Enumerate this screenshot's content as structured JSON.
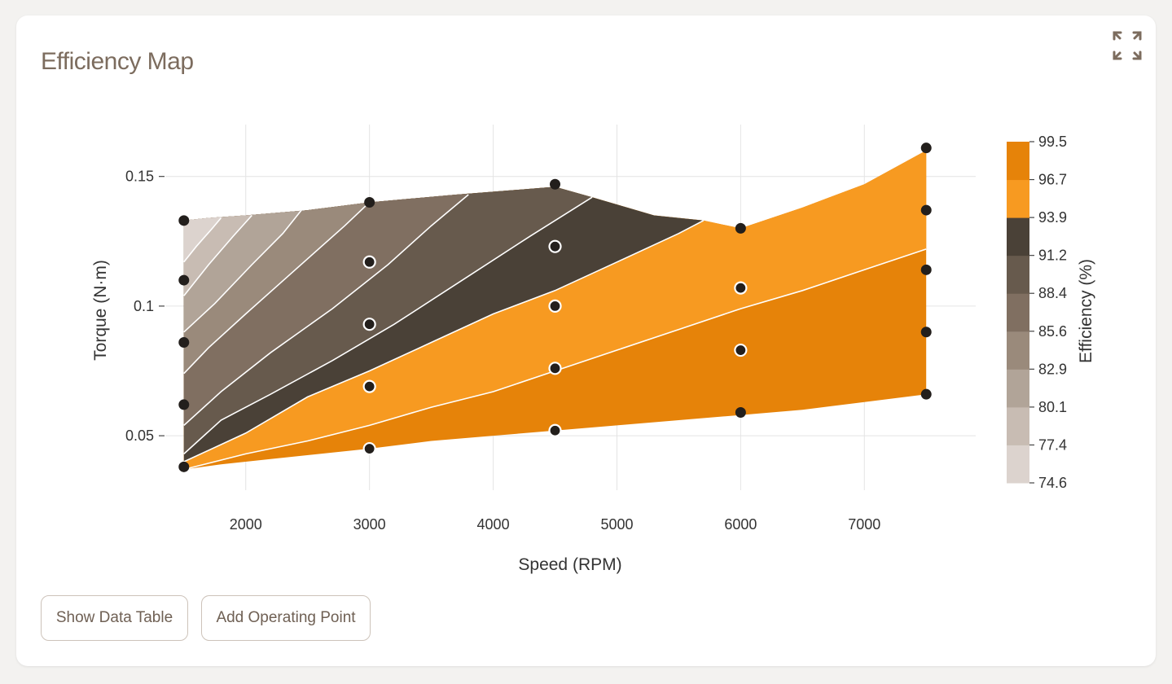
{
  "title": "Efficiency Map",
  "icons": {
    "expand": "expand-icon"
  },
  "buttons": {
    "show_table": "Show Data Table",
    "add_point": "Add Operating Point"
  },
  "chart_data": {
    "type": "contour",
    "xlabel": "Speed (RPM)",
    "ylabel": "Torque (N·m)",
    "xlim": [
      1350,
      7900
    ],
    "ylim": [
      0.029,
      0.17
    ],
    "xticks": [
      2000,
      3000,
      4000,
      5000,
      6000,
      7000
    ],
    "yticks": [
      0.05,
      0.1,
      0.15
    ],
    "ytick_labels": [
      "0.05",
      "0.1",
      "0.15"
    ],
    "grid": true,
    "colorbar": {
      "label": "Efficiency (%)",
      "tick_labels": [
        "74.6",
        "77.4",
        "80.1",
        "82.9",
        "85.6",
        "88.4",
        "91.2",
        "93.9",
        "96.7",
        "99.5"
      ],
      "range": [
        74.6,
        99.5
      ],
      "band_colors": [
        "#dcd3ce",
        "#c8bcb3",
        "#b1a498",
        "#9a8a7b",
        "#806f61",
        "#675a4d",
        "#4a4137",
        "#f79a21",
        "#e68309"
      ]
    },
    "boundary": {
      "top": [
        [
          1500,
          0.133
        ],
        [
          1700,
          0.134
        ],
        [
          2000,
          0.135
        ],
        [
          2500,
          0.137
        ],
        [
          3000,
          0.14
        ],
        [
          3700,
          0.143
        ],
        [
          4500,
          0.146
        ],
        [
          4800,
          0.142
        ],
        [
          5300,
          0.135
        ],
        [
          5700,
          0.133
        ],
        [
          6000,
          0.13
        ],
        [
          6500,
          0.138
        ],
        [
          7000,
          0.147
        ],
        [
          7500,
          0.16
        ]
      ],
      "bottom": [
        [
          1500,
          0.037
        ],
        [
          1800,
          0.039
        ],
        [
          2200,
          0.041
        ],
        [
          2600,
          0.043
        ],
        [
          3000,
          0.045
        ],
        [
          3500,
          0.048
        ],
        [
          4000,
          0.05
        ],
        [
          4500,
          0.052
        ],
        [
          5000,
          0.054
        ],
        [
          5500,
          0.056
        ],
        [
          6000,
          0.058
        ],
        [
          6500,
          0.06
        ],
        [
          7000,
          0.063
        ],
        [
          7500,
          0.066
        ]
      ]
    },
    "contours": [
      {
        "level": 77.4,
        "points": [
          [
            1500,
            0.117
          ],
          [
            1600,
            0.123
          ],
          [
            1730,
            0.13
          ],
          [
            1800,
            0.134
          ]
        ]
      },
      {
        "level": 80.1,
        "points": [
          [
            1500,
            0.104
          ],
          [
            1700,
            0.116
          ],
          [
            1900,
            0.127
          ],
          [
            2050,
            0.135
          ]
        ]
      },
      {
        "level": 82.9,
        "points": [
          [
            1500,
            0.09
          ],
          [
            1750,
            0.101
          ],
          [
            2050,
            0.116
          ],
          [
            2300,
            0.128
          ],
          [
            2450,
            0.137
          ]
        ]
      },
      {
        "level": 85.6,
        "points": [
          [
            1500,
            0.074
          ],
          [
            1700,
            0.084
          ],
          [
            2000,
            0.097
          ],
          [
            2400,
            0.114
          ],
          [
            2800,
            0.131
          ],
          [
            3000,
            0.14
          ]
        ]
      },
      {
        "level": 88.4,
        "points": [
          [
            1500,
            0.054
          ],
          [
            1800,
            0.067
          ],
          [
            2200,
            0.082
          ],
          [
            2700,
            0.099
          ],
          [
            3150,
            0.116
          ],
          [
            3500,
            0.131
          ],
          [
            3800,
            0.143
          ]
        ]
      },
      {
        "level": 91.2,
        "points": [
          [
            1500,
            0.043
          ],
          [
            1800,
            0.056
          ],
          [
            2200,
            0.066
          ],
          [
            2700,
            0.079
          ],
          [
            3200,
            0.093
          ],
          [
            3750,
            0.11
          ],
          [
            4300,
            0.127
          ],
          [
            4800,
            0.142
          ]
        ]
      },
      {
        "level": 93.9,
        "points": [
          [
            1500,
            0.04
          ],
          [
            2000,
            0.051
          ],
          [
            2500,
            0.065
          ],
          [
            3000,
            0.075
          ],
          [
            3500,
            0.086
          ],
          [
            4000,
            0.097
          ],
          [
            4500,
            0.106
          ],
          [
            5000,
            0.117
          ],
          [
            5500,
            0.128
          ],
          [
            5700,
            0.133
          ]
        ]
      },
      {
        "level": 96.7,
        "points": [
          [
            1500,
            0.037
          ],
          [
            2000,
            0.043
          ],
          [
            2500,
            0.048
          ],
          [
            3000,
            0.054
          ],
          [
            3500,
            0.061
          ],
          [
            4000,
            0.067
          ],
          [
            4500,
            0.075
          ],
          [
            5000,
            0.083
          ],
          [
            5500,
            0.091
          ],
          [
            6000,
            0.099
          ],
          [
            6500,
            0.106
          ],
          [
            7000,
            0.114
          ],
          [
            7500,
            0.122
          ]
        ]
      }
    ],
    "points": [
      {
        "speed": 1500,
        "torque": 0.133,
        "style": "filled"
      },
      {
        "speed": 1500,
        "torque": 0.11,
        "style": "filled"
      },
      {
        "speed": 1500,
        "torque": 0.086,
        "style": "filled"
      },
      {
        "speed": 1500,
        "torque": 0.062,
        "style": "filled"
      },
      {
        "speed": 1500,
        "torque": 0.038,
        "style": "filled"
      },
      {
        "speed": 3000,
        "torque": 0.14,
        "style": "filled"
      },
      {
        "speed": 3000,
        "torque": 0.117,
        "style": "ring"
      },
      {
        "speed": 3000,
        "torque": 0.093,
        "style": "ring"
      },
      {
        "speed": 3000,
        "torque": 0.069,
        "style": "ring"
      },
      {
        "speed": 3000,
        "torque": 0.045,
        "style": "ring"
      },
      {
        "speed": 4500,
        "torque": 0.147,
        "style": "filled"
      },
      {
        "speed": 4500,
        "torque": 0.123,
        "style": "ring"
      },
      {
        "speed": 4500,
        "torque": 0.1,
        "style": "ring"
      },
      {
        "speed": 4500,
        "torque": 0.076,
        "style": "ring"
      },
      {
        "speed": 4500,
        "torque": 0.052,
        "style": "ring"
      },
      {
        "speed": 6000,
        "torque": 0.13,
        "style": "filled"
      },
      {
        "speed": 6000,
        "torque": 0.107,
        "style": "ring"
      },
      {
        "speed": 6000,
        "torque": 0.083,
        "style": "ring"
      },
      {
        "speed": 6000,
        "torque": 0.059,
        "style": "filled"
      },
      {
        "speed": 7500,
        "torque": 0.161,
        "style": "filled"
      },
      {
        "speed": 7500,
        "torque": 0.137,
        "style": "filled"
      },
      {
        "speed": 7500,
        "torque": 0.114,
        "style": "filled"
      },
      {
        "speed": 7500,
        "torque": 0.09,
        "style": "filled"
      },
      {
        "speed": 7500,
        "torque": 0.066,
        "style": "filled"
      }
    ]
  }
}
